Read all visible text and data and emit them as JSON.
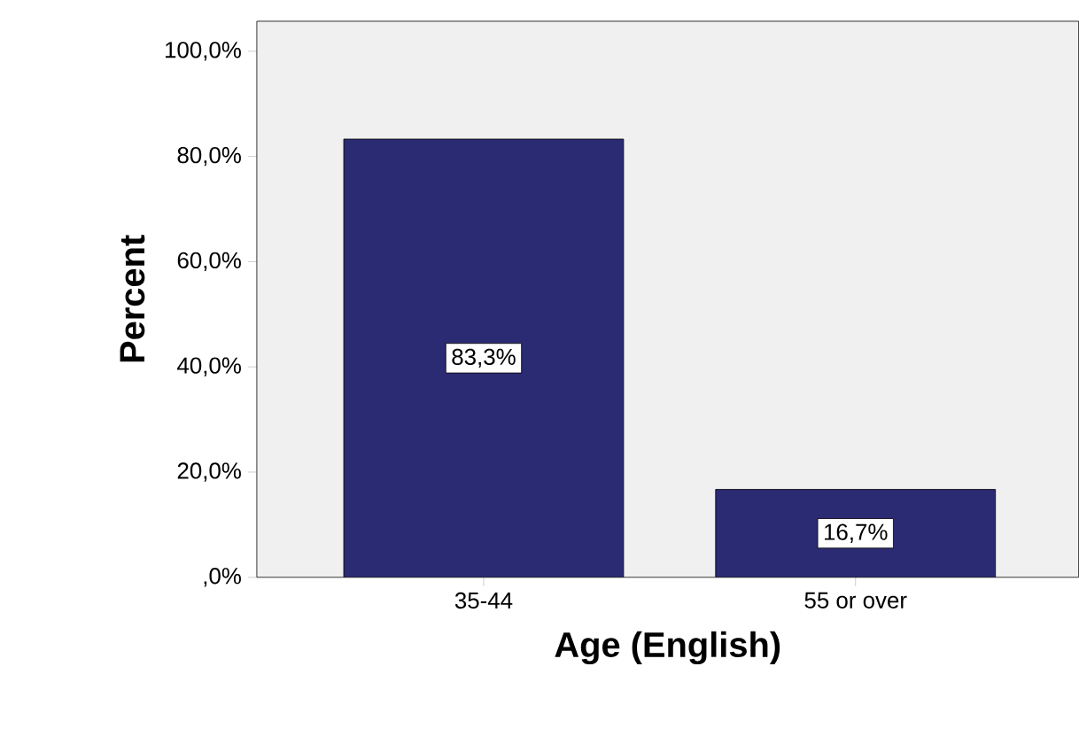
{
  "chart_data": {
    "type": "bar",
    "xlabel": "Age (English)",
    "ylabel": "Percent",
    "categories": [
      "35-44",
      "55 or over"
    ],
    "values": [
      83.3,
      16.7
    ],
    "value_labels": [
      "83,3%",
      "16,7%"
    ],
    "color": "#2b2b73",
    "ylim": [
      0,
      105.7
    ],
    "yticks": [
      {
        "value": 0,
        "label": ",0%"
      },
      {
        "value": 20,
        "label": "20,0%"
      },
      {
        "value": 40,
        "label": "40,0%"
      },
      {
        "value": 60,
        "label": "60,0%"
      },
      {
        "value": 80,
        "label": "80,0%"
      },
      {
        "value": 100,
        "label": "100,0%"
      }
    ],
    "grid": false
  }
}
